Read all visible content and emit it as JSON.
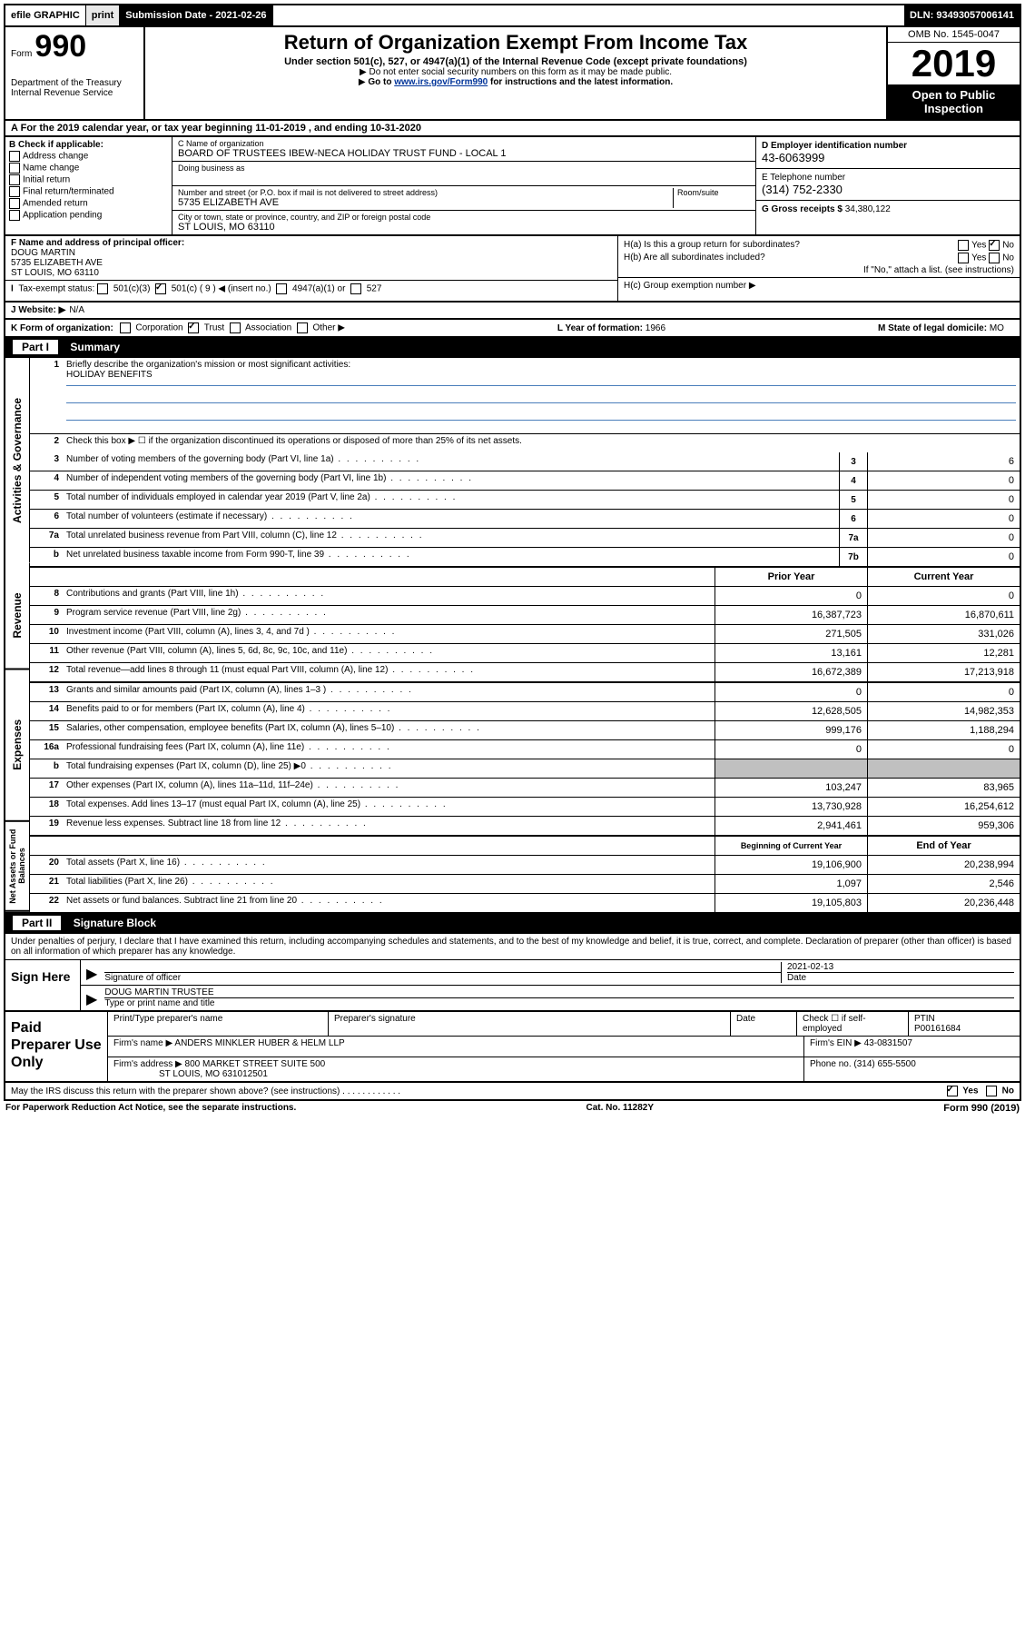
{
  "topbar": {
    "efile": "efile GRAPHIC",
    "print": "print",
    "submission": "Submission Date - 2021-02-26",
    "dln": "DLN: 93493057006141"
  },
  "header": {
    "form_prefix": "Form",
    "form_number": "990",
    "dept1": "Department of the Treasury",
    "dept2": "Internal Revenue Service",
    "title": "Return of Organization Exempt From Income Tax",
    "sub1": "Under section 501(c), 527, or 4947(a)(1) of the Internal Revenue Code (except private foundations)",
    "sub2": "Do not enter social security numbers on this form as it may be made public.",
    "sub3a": "Go to ",
    "sub3_link": "www.irs.gov/Form990",
    "sub3b": " for instructions and the latest information.",
    "omb": "OMB No. 1545-0047",
    "year": "2019",
    "open1": "Open to Public",
    "open2": "Inspection"
  },
  "period": "For the 2019 calendar year, or tax year beginning 11-01-2019    , and ending 10-31-2020",
  "sectionB": {
    "label": "B Check if applicable:",
    "opts": [
      "Address change",
      "Name change",
      "Initial return",
      "Final return/terminated",
      "Amended return",
      "Application pending"
    ]
  },
  "sectionC": {
    "name_label": "C Name of organization",
    "name": "BOARD OF TRUSTEES IBEW-NECA HOLIDAY TRUST FUND - LOCAL 1",
    "dba_label": "Doing business as",
    "addr_label": "Number and street (or P.O. box if mail is not delivered to street address)",
    "room_label": "Room/suite",
    "addr": "5735 ELIZABETH AVE",
    "city_label": "City or town, state or province, country, and ZIP or foreign postal code",
    "city": "ST LOUIS, MO  63110"
  },
  "sectionD": {
    "ein_label": "D Employer identification number",
    "ein": "43-6063999",
    "tel_label": "E Telephone number",
    "tel": "(314) 752-2330",
    "gross_label": "G Gross receipts $",
    "gross": "34,380,122"
  },
  "sectionF": {
    "label": "F  Name and address of principal officer:",
    "name": "DOUG MARTIN",
    "addr1": "5735 ELIZABETH AVE",
    "addr2": "ST LOUIS, MO  63110",
    "tax_status": "Tax-exempt status:",
    "opt1": "501(c)(3)",
    "opt2": "501(c) ( 9 ) ◀ (insert no.)",
    "opt3": "4947(a)(1) or",
    "opt4": "527",
    "website_label": "J  Website: ▶",
    "website": "N/A"
  },
  "sectionH": {
    "ha": "H(a)  Is this a group return for subordinates?",
    "hb": "H(b)  Are all subordinates included?",
    "hb_note": "If \"No,\" attach a list. (see instructions)",
    "hc": "H(c)  Group exemption number ▶",
    "yes": "Yes",
    "no": "No"
  },
  "rowK": {
    "label": "K Form of organization:",
    "opts": [
      "Corporation",
      "Trust",
      "Association",
      "Other ▶"
    ],
    "l_label": "L Year of formation:",
    "l_val": "1966",
    "m_label": "M State of legal domicile:",
    "m_val": "MO"
  },
  "partI": {
    "header_num": "Part I",
    "header_title": "Summary",
    "line1_label": "Briefly describe the organization's mission or most significant activities:",
    "line1_val": "HOLIDAY BENEFITS",
    "line2": "Check this box ▶ ☐  if the organization discontinued its operations or disposed of more than 25% of its net assets.",
    "lines_top": [
      {
        "n": "3",
        "d": "Number of voting members of the governing body (Part VI, line 1a)",
        "box": "3",
        "v": "6"
      },
      {
        "n": "4",
        "d": "Number of independent voting members of the governing body (Part VI, line 1b)",
        "box": "4",
        "v": "0"
      },
      {
        "n": "5",
        "d": "Total number of individuals employed in calendar year 2019 (Part V, line 2a)",
        "box": "5",
        "v": "0"
      },
      {
        "n": "6",
        "d": "Total number of volunteers (estimate if necessary)",
        "box": "6",
        "v": "0"
      },
      {
        "n": "7a",
        "d": "Total unrelated business revenue from Part VIII, column (C), line 12",
        "box": "7a",
        "v": "0"
      },
      {
        "n": "b",
        "d": "Net unrelated business taxable income from Form 990-T, line 39",
        "box": "7b",
        "v": "0"
      }
    ],
    "col_headers": {
      "prior": "Prior Year",
      "current": "Current Year"
    },
    "revenue": [
      {
        "n": "8",
        "d": "Contributions and grants (Part VIII, line 1h)",
        "p": "0",
        "c": "0"
      },
      {
        "n": "9",
        "d": "Program service revenue (Part VIII, line 2g)",
        "p": "16,387,723",
        "c": "16,870,611"
      },
      {
        "n": "10",
        "d": "Investment income (Part VIII, column (A), lines 3, 4, and 7d )",
        "p": "271,505",
        "c": "331,026"
      },
      {
        "n": "11",
        "d": "Other revenue (Part VIII, column (A), lines 5, 6d, 8c, 9c, 10c, and 11e)",
        "p": "13,161",
        "c": "12,281"
      },
      {
        "n": "12",
        "d": "Total revenue—add lines 8 through 11 (must equal Part VIII, column (A), line 12)",
        "p": "16,672,389",
        "c": "17,213,918"
      }
    ],
    "expenses": [
      {
        "n": "13",
        "d": "Grants and similar amounts paid (Part IX, column (A), lines 1–3 )",
        "p": "0",
        "c": "0"
      },
      {
        "n": "14",
        "d": "Benefits paid to or for members (Part IX, column (A), line 4)",
        "p": "12,628,505",
        "c": "14,982,353"
      },
      {
        "n": "15",
        "d": "Salaries, other compensation, employee benefits (Part IX, column (A), lines 5–10)",
        "p": "999,176",
        "c": "1,188,294"
      },
      {
        "n": "16a",
        "d": "Professional fundraising fees (Part IX, column (A), line 11e)",
        "p": "0",
        "c": "0"
      },
      {
        "n": "b",
        "d": "Total fundraising expenses (Part IX, column (D), line 25) ▶0",
        "p": "",
        "c": "",
        "shade": true
      },
      {
        "n": "17",
        "d": "Other expenses (Part IX, column (A), lines 11a–11d, 11f–24e)",
        "p": "103,247",
        "c": "83,965"
      },
      {
        "n": "18",
        "d": "Total expenses. Add lines 13–17 (must equal Part IX, column (A), line 25)",
        "p": "13,730,928",
        "c": "16,254,612"
      },
      {
        "n": "19",
        "d": "Revenue less expenses. Subtract line 18 from line 12",
        "p": "2,941,461",
        "c": "959,306"
      }
    ],
    "net_headers": {
      "begin": "Beginning of Current Year",
      "end": "End of Year"
    },
    "net": [
      {
        "n": "20",
        "d": "Total assets (Part X, line 16)",
        "p": "19,106,900",
        "c": "20,238,994"
      },
      {
        "n": "21",
        "d": "Total liabilities (Part X, line 26)",
        "p": "1,097",
        "c": "2,546"
      },
      {
        "n": "22",
        "d": "Net assets or fund balances. Subtract line 21 from line 20",
        "p": "19,105,803",
        "c": "20,236,448"
      }
    ],
    "tabs": {
      "gov": "Activities & Governance",
      "rev": "Revenue",
      "exp": "Expenses",
      "net": "Net Assets or Fund Balances"
    }
  },
  "partII": {
    "header_num": "Part II",
    "header_title": "Signature Block",
    "intro": "Under penalties of perjury, I declare that I have examined this return, including accompanying schedules and statements, and to the best of my knowledge and belief, it is true, correct, and complete. Declaration of preparer (other than officer) is based on all information of which preparer has any knowledge.",
    "sign_here": "Sign Here",
    "sig_officer": "Signature of officer",
    "sig_date": "2021-02-13",
    "date_label": "Date",
    "officer_name": "DOUG MARTIN TRUSTEE",
    "type_label": "Type or print name and title",
    "paid": "Paid Preparer Use Only",
    "prep_name_label": "Print/Type preparer's name",
    "prep_sig_label": "Preparer's signature",
    "prep_date_label": "Date",
    "check_if": "Check ☐ if self-employed",
    "ptin_label": "PTIN",
    "ptin": "P00161684",
    "firm_name_label": "Firm's name    ▶",
    "firm_name": "ANDERS MINKLER HUBER & HELM LLP",
    "firm_ein_label": "Firm's EIN ▶",
    "firm_ein": "43-0831507",
    "firm_addr_label": "Firm's address ▶",
    "firm_addr1": "800 MARKET STREET SUITE 500",
    "firm_addr2": "ST LOUIS, MO  631012501",
    "phone_label": "Phone no.",
    "phone": "(314) 655-5500",
    "discuss": "May the IRS discuss this return with the preparer shown above? (see instructions)",
    "discuss_yes": "Yes",
    "discuss_no": "No"
  },
  "footer": {
    "left": "For Paperwork Reduction Act Notice, see the separate instructions.",
    "mid": "Cat. No. 11282Y",
    "right": "Form 990 (2019)"
  }
}
